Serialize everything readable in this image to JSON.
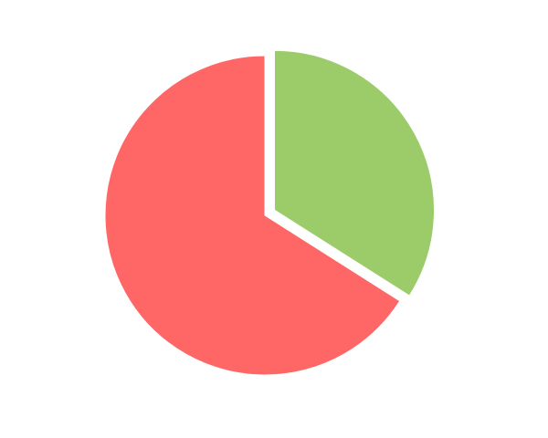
{
  "chart_data": {
    "type": "pie",
    "values": [
      34,
      66
    ],
    "colors": [
      "#9ccc6a",
      "#ff6666"
    ],
    "explode": [
      true,
      false
    ],
    "start_angle": 0,
    "direction": "clockwise"
  }
}
